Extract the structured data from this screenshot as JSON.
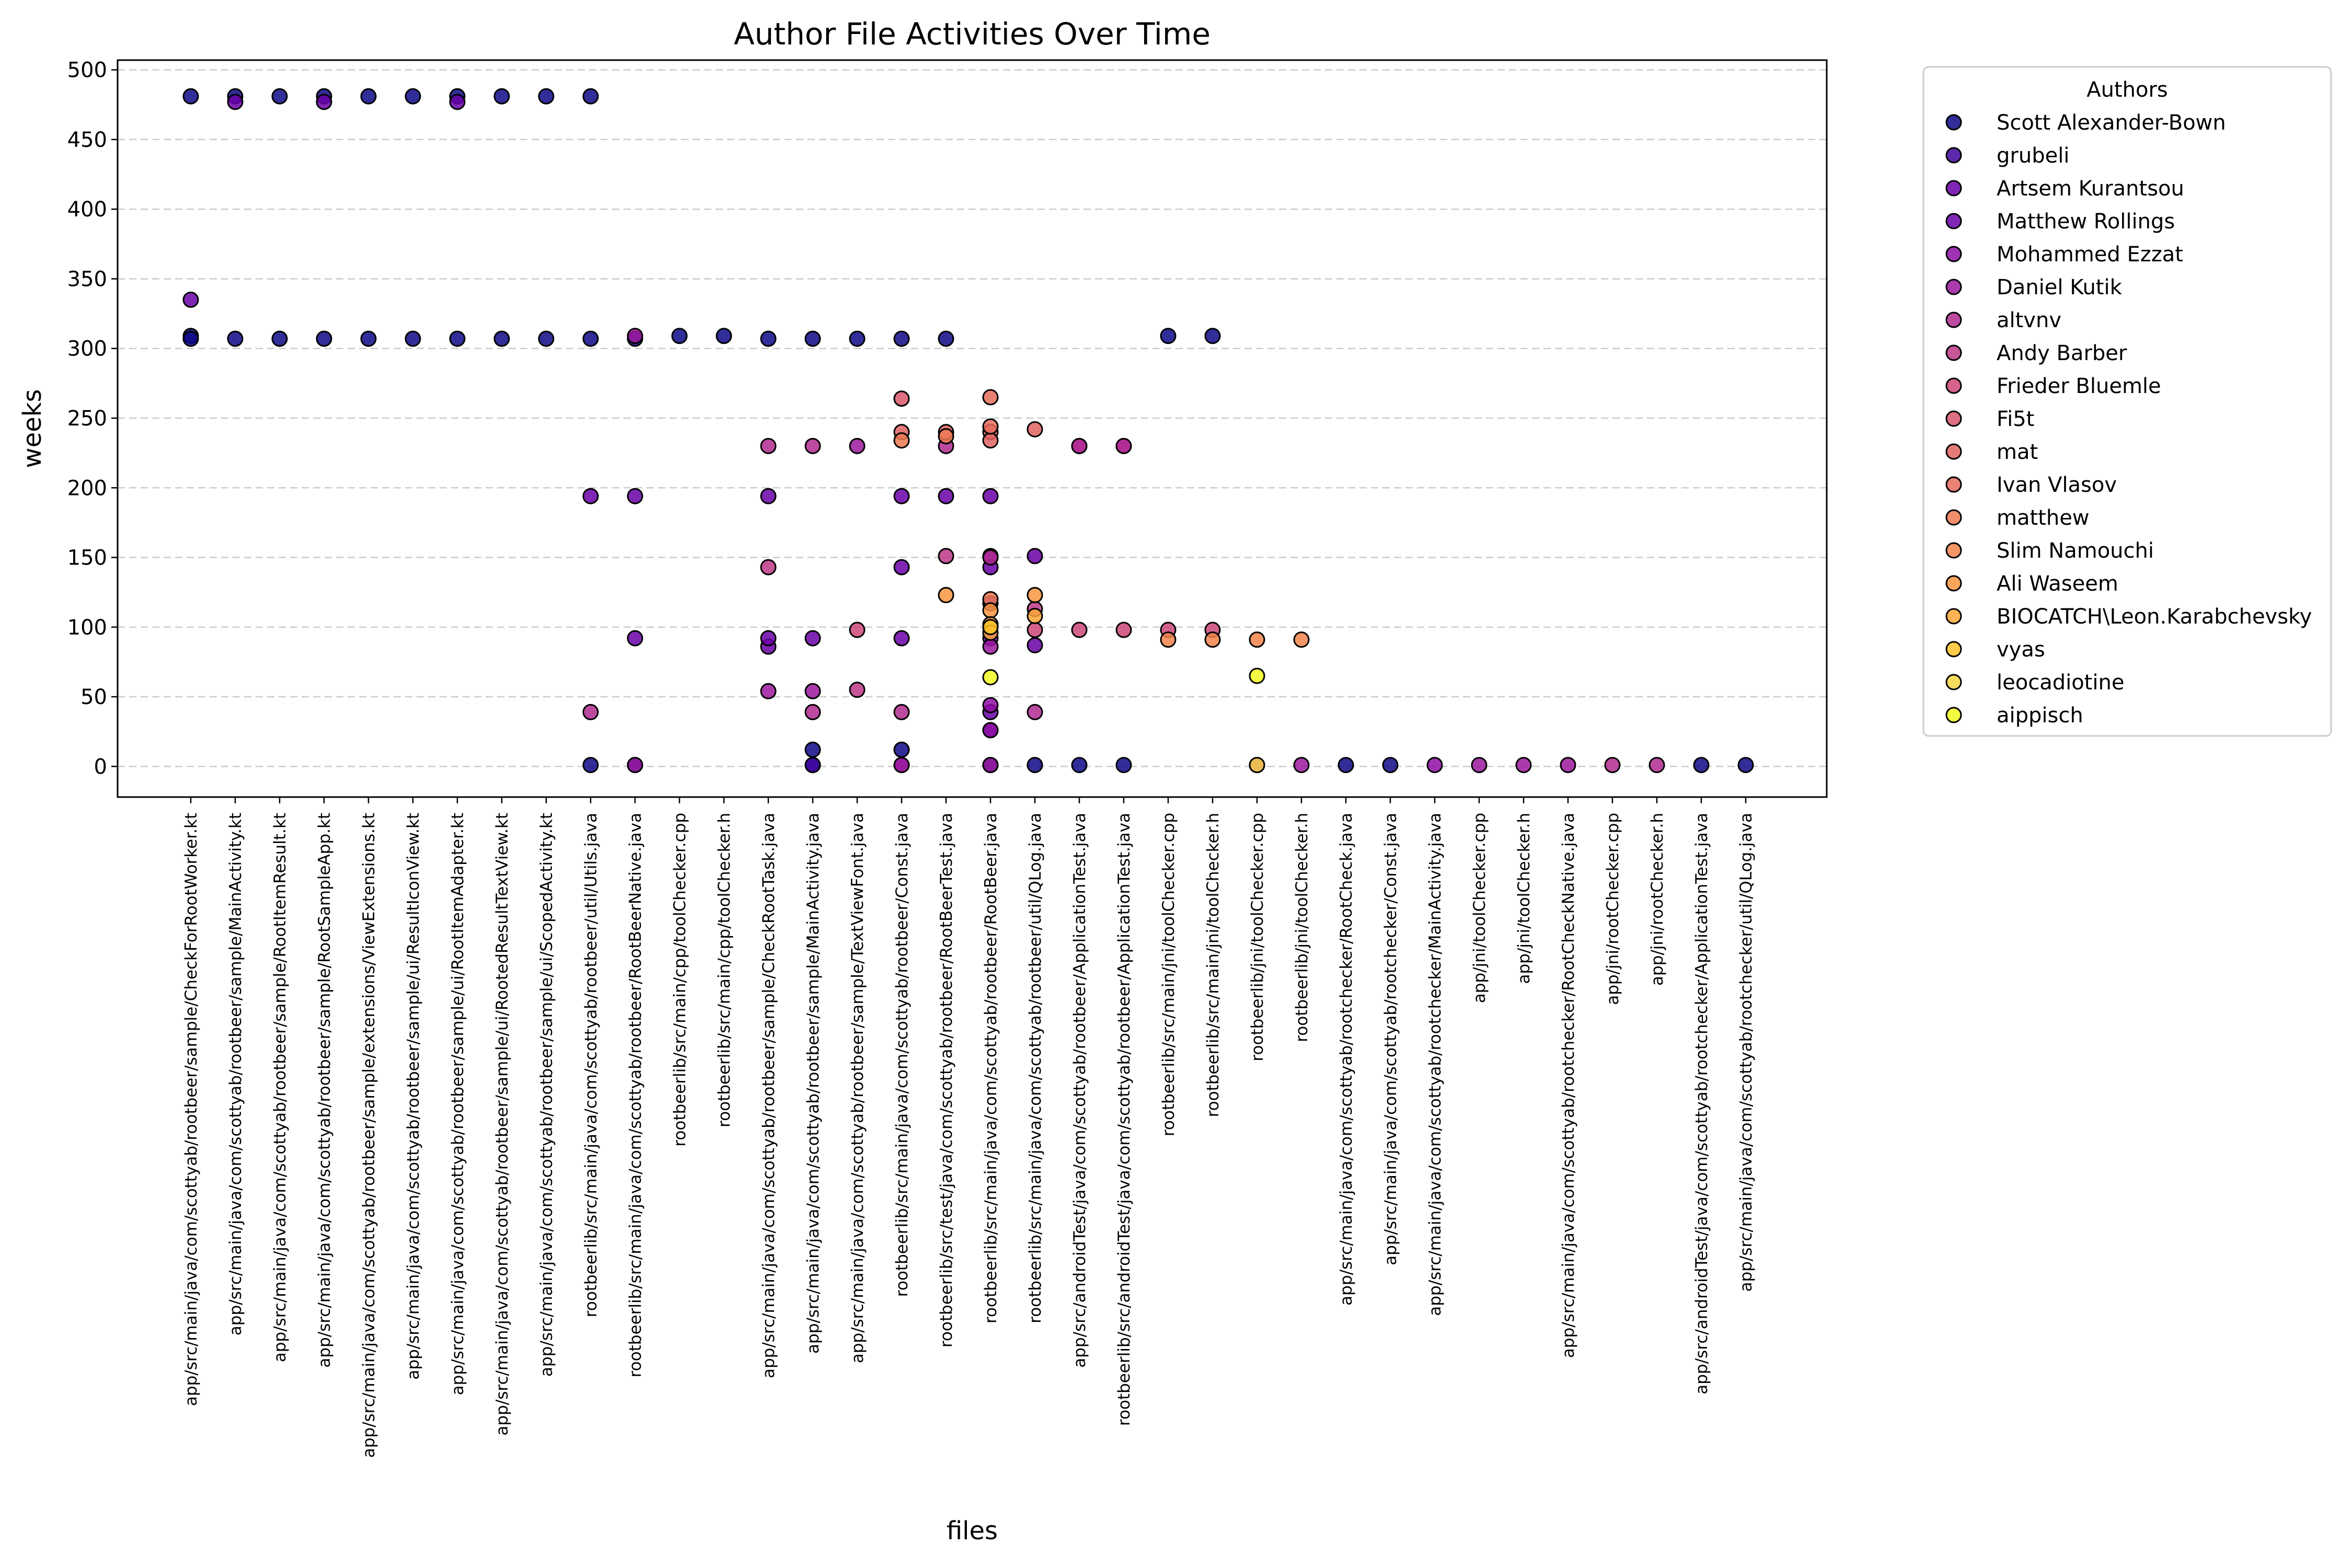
{
  "chart_data": {
    "type": "scatter",
    "title": "Author File Activities Over Time",
    "xlabel": "files",
    "ylabel": "weeks",
    "ylim": [
      -22,
      507
    ],
    "yticks": [
      0,
      50,
      100,
      150,
      200,
      250,
      300,
      350,
      400,
      450,
      500
    ],
    "grid": "y-dashed",
    "legend_title": "Authors",
    "legend_placement": "outside-right-top",
    "categories": [
      "app/src/main/java/com/scottyab/rootbeer/sample/CheckForRootWorker.kt",
      "app/src/main/java/com/scottyab/rootbeer/sample/MainActivity.kt",
      "app/src/main/java/com/scottyab/rootbeer/sample/RootItemResult.kt",
      "app/src/main/java/com/scottyab/rootbeer/sample/RootSampleApp.kt",
      "app/src/main/java/com/scottyab/rootbeer/sample/extensions/ViewExtensions.kt",
      "app/src/main/java/com/scottyab/rootbeer/sample/ui/ResultIconView.kt",
      "app/src/main/java/com/scottyab/rootbeer/sample/ui/RootItemAdapter.kt",
      "app/src/main/java/com/scottyab/rootbeer/sample/ui/RootedResultTextView.kt",
      "app/src/main/java/com/scottyab/rootbeer/sample/ui/ScopedActivity.kt",
      "rootbeerlib/src/main/java/com/scottyab/rootbeer/util/Utils.java",
      "rootbeerlib/src/main/java/com/scottyab/rootbeer/RootBeerNative.java",
      "rootbeerlib/src/main/cpp/toolChecker.cpp",
      "rootbeerlib/src/main/cpp/toolChecker.h",
      "app/src/main/java/com/scottyab/rootbeer/sample/CheckRootTask.java",
      "app/src/main/java/com/scottyab/rootbeer/sample/MainActivity.java",
      "app/src/main/java/com/scottyab/rootbeer/sample/TextViewFont.java",
      "rootbeerlib/src/main/java/com/scottyab/rootbeer/Const.java",
      "rootbeerlib/src/test/java/com/scottyab/rootbeer/RootBeerTest.java",
      "rootbeerlib/src/main/java/com/scottyab/rootbeer/RootBeer.java",
      "rootbeerlib/src/main/java/com/scottyab/rootbeer/util/QLog.java",
      "app/src/androidTest/java/com/scottyab/rootbeer/ApplicationTest.java",
      "rootbeerlib/src/androidTest/java/com/scottyab/rootbeer/ApplicationTest.java",
      "rootbeerlib/src/main/jni/toolChecker.cpp",
      "rootbeerlib/src/main/jni/toolChecker.h",
      "rootbeerlib/jni/toolChecker.cpp",
      "rootbeerlib/jni/toolChecker.h",
      "app/src/main/java/com/scottyab/rootchecker/RootCheck.java",
      "app/src/main/java/com/scottyab/rootchecker/Const.java",
      "app/src/main/java/com/scottyab/rootchecker/MainActivity.java",
      "app/jni/toolChecker.cpp",
      "app/jni/toolChecker.h",
      "app/src/main/java/com/scottyab/rootchecker/RootCheckNative.java",
      "app/jni/rootChecker.cpp",
      "app/jni/rootChecker.h",
      "app/src/androidTest/java/com/scottyab/rootchecker/ApplicationTest.java",
      "app/src/main/java/com/scottyab/rootchecker/util/QLog.java"
    ],
    "series": [
      {
        "name": "Scott Alexander-Bown",
        "color": "#0d0887",
        "points": [
          [
            0,
            481
          ],
          [
            0,
            309
          ],
          [
            0,
            307
          ],
          [
            1,
            481
          ],
          [
            1,
            307
          ],
          [
            2,
            481
          ],
          [
            2,
            307
          ],
          [
            3,
            481
          ],
          [
            3,
            307
          ],
          [
            4,
            481
          ],
          [
            4,
            307
          ],
          [
            5,
            481
          ],
          [
            5,
            307
          ],
          [
            6,
            481
          ],
          [
            6,
            307
          ],
          [
            7,
            481
          ],
          [
            7,
            307
          ],
          [
            8,
            481
          ],
          [
            8,
            307
          ],
          [
            9,
            481
          ],
          [
            9,
            307
          ],
          [
            9,
            1
          ],
          [
            10,
            307
          ],
          [
            10,
            1
          ],
          [
            11,
            309
          ],
          [
            12,
            309
          ],
          [
            13,
            307
          ],
          [
            14,
            307
          ],
          [
            14,
            12
          ],
          [
            14,
            1
          ],
          [
            15,
            307
          ],
          [
            16,
            307
          ],
          [
            16,
            12
          ],
          [
            17,
            307
          ],
          [
            18,
            1
          ],
          [
            19,
            1
          ],
          [
            20,
            1
          ],
          [
            21,
            1
          ],
          [
            22,
            309
          ],
          [
            23,
            309
          ],
          [
            26,
            1
          ],
          [
            27,
            1
          ],
          [
            34,
            1
          ],
          [
            35,
            1
          ]
        ]
      },
      {
        "name": "grubeli",
        "color": "#41049d",
        "points": [
          [
            14,
            1
          ]
        ]
      },
      {
        "name": "Artsem Kurantsou",
        "color": "#6a00a8",
        "points": [
          [
            0,
            335
          ],
          [
            13,
            86
          ],
          [
            16,
            143
          ],
          [
            18,
            151
          ],
          [
            18,
            143
          ],
          [
            18,
            117
          ],
          [
            18,
            26
          ],
          [
            18,
            39
          ],
          [
            19,
            87
          ],
          [
            19,
            151
          ]
        ]
      },
      {
        "name": "Matthew Rollings",
        "color": "#6a00a8",
        "points": [
          [
            1,
            477
          ],
          [
            3,
            477
          ],
          [
            6,
            477
          ],
          [
            9,
            194
          ],
          [
            10,
            194
          ],
          [
            10,
            92
          ],
          [
            13,
            194
          ],
          [
            13,
            92
          ],
          [
            14,
            92
          ],
          [
            16,
            194
          ],
          [
            16,
            92
          ],
          [
            17,
            194
          ],
          [
            18,
            194
          ],
          [
            18,
            92
          ]
        ]
      },
      {
        "name": "Mohammed Ezzat",
        "color": "#8f0da4",
        "points": [
          [
            16,
            1
          ],
          [
            18,
            26
          ],
          [
            18,
            44
          ],
          [
            28,
            1
          ]
        ]
      },
      {
        "name": "Daniel Kutik",
        "color": "#9c179e",
        "points": [
          [
            10,
            309
          ],
          [
            10,
            1
          ],
          [
            13,
            54
          ],
          [
            14,
            54
          ],
          [
            15,
            230
          ],
          [
            16,
            1
          ],
          [
            18,
            1
          ],
          [
            18,
            86
          ],
          [
            20,
            230
          ],
          [
            21,
            230
          ],
          [
            24,
            1
          ],
          [
            25,
            1
          ],
          [
            29,
            1
          ],
          [
            30,
            1
          ],
          [
            31,
            1
          ]
        ]
      },
      {
        "name": "altvnv",
        "color": "#b12a90",
        "points": [
          [
            9,
            39
          ],
          [
            13,
            230
          ],
          [
            14,
            39
          ],
          [
            14,
            230
          ],
          [
            16,
            39
          ],
          [
            17,
            230
          ],
          [
            18,
            150
          ],
          [
            19,
            39
          ],
          [
            20,
            230
          ],
          [
            21,
            230
          ],
          [
            32,
            1
          ],
          [
            33,
            1
          ]
        ]
      },
      {
        "name": "Andy Barber",
        "color": "#bd3786",
        "points": [
          [
            13,
            143
          ],
          [
            15,
            55
          ],
          [
            17,
            151
          ],
          [
            19,
            113
          ]
        ]
      },
      {
        "name": "Frieder Bluemle",
        "color": "#cc4778",
        "points": [
          [
            15,
            98
          ],
          [
            19,
            98
          ],
          [
            20,
            98
          ],
          [
            21,
            98
          ],
          [
            22,
            98
          ],
          [
            23,
            98
          ]
        ]
      },
      {
        "name": "Fi5t",
        "color": "#d8576b",
        "points": [
          [
            16,
            264
          ]
        ]
      },
      {
        "name": "mat",
        "color": "#e16462",
        "points": [
          [
            16,
            240
          ],
          [
            17,
            240
          ],
          [
            18,
            240
          ],
          [
            18,
            234
          ],
          [
            19,
            242
          ]
        ]
      },
      {
        "name": "Ivan Vlasov",
        "color": "#e66c5c",
        "points": [
          [
            18,
            265
          ],
          [
            18,
            244
          ]
        ]
      },
      {
        "name": "matthew",
        "color": "#ed7953",
        "points": [
          [
            16,
            234
          ],
          [
            17,
            237
          ],
          [
            18,
            120
          ]
        ]
      },
      {
        "name": "Slim Namouchi",
        "color": "#f2844b",
        "points": [
          [
            22,
            91
          ],
          [
            23,
            91
          ],
          [
            24,
            91
          ],
          [
            25,
            91
          ]
        ]
      },
      {
        "name": "Ali Waseem",
        "color": "#f89540",
        "points": [
          [
            17,
            123
          ],
          [
            18,
            112
          ],
          [
            18,
            102
          ],
          [
            19,
            123
          ]
        ]
      },
      {
        "name": "BIOCATCH\\Leon.Karabchevsky",
        "color": "#fca636",
        "points": [
          [
            18,
            96
          ],
          [
            19,
            108
          ]
        ]
      },
      {
        "name": "vyas",
        "color": "#fdc328",
        "points": [
          [
            18,
            100
          ]
        ]
      },
      {
        "name": "leocadiotine",
        "color": "#f6d543",
        "points": [
          [
            24,
            1
          ]
        ]
      },
      {
        "name": "aippisch",
        "color": "#f0f921",
        "points": [
          [
            18,
            64
          ],
          [
            24,
            65
          ]
        ]
      }
    ]
  }
}
